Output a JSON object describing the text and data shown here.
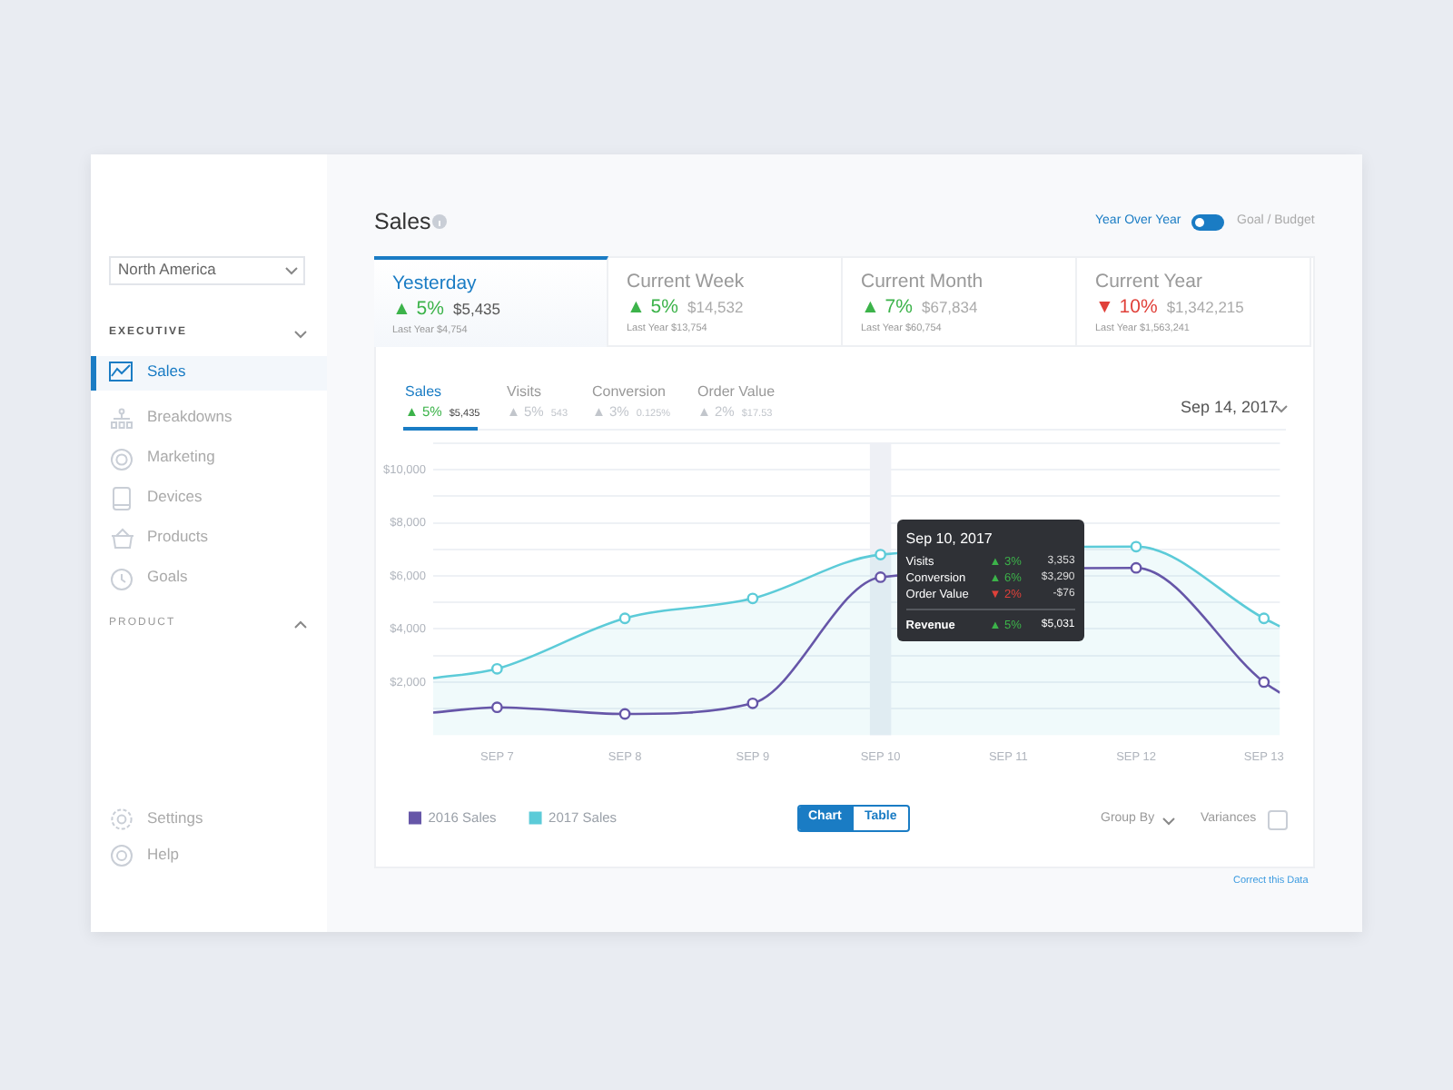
{
  "chart_data": {
    "type": "line",
    "title": "Sales",
    "x": [
      "2017-09-06T12:00",
      "2017-09-07",
      "2017-09-08",
      "2017-09-09",
      "2017-09-10",
      "2017-09-11",
      "2017-09-12",
      "2017-09-13",
      "2017-09-13T03:00"
    ],
    "series": [
      {
        "name": "2016 Sales",
        "color": "#6656a8",
        "values": [
          850,
          1050,
          800,
          1200,
          5950,
          null,
          6300,
          2000,
          1600
        ]
      },
      {
        "name": "2017 Sales",
        "type": "area",
        "color": "#5ccbd8",
        "values": [
          2150,
          2500,
          4400,
          5150,
          6800,
          null,
          7100,
          4400,
          4100
        ]
      }
    ],
    "xlim": [
      "2017-09-06T12:00",
      "2017-09-13T03:00"
    ],
    "xticks": [
      {
        "value": "2017-09-07",
        "label": "SEP 7"
      },
      {
        "value": "2017-09-08",
        "label": "SEP 8"
      },
      {
        "value": "2017-09-09",
        "label": "SEP 9"
      },
      {
        "value": "2017-09-10",
        "label": "SEP 10"
      },
      {
        "value": "2017-09-11",
        "label": "SEP 11"
      },
      {
        "value": "2017-09-12",
        "label": "SEP 12"
      },
      {
        "value": "2017-09-13",
        "label": "SEP 13"
      }
    ],
    "ylim": [
      0,
      11000
    ],
    "yticks": [
      {
        "value": 1000,
        "label": null
      },
      {
        "value": 2000,
        "label": "$2,000"
      },
      {
        "value": 3000,
        "label": null
      },
      {
        "value": 4000,
        "label": "$4,000"
      },
      {
        "value": 5000,
        "label": null
      },
      {
        "value": 6000,
        "label": "$6,000"
      },
      {
        "value": 7000,
        "label": null
      },
      {
        "value": 8000,
        "label": "$8,000"
      },
      {
        "value": 9000,
        "label": null
      },
      {
        "value": 10000,
        "label": "$10,000"
      },
      {
        "value": 11000,
        "label": null
      }
    ],
    "grid": "y",
    "legend": "bottom left",
    "marker": "circle",
    "bands": [
      {
        "axis": "x",
        "from": "2017-09-09T22:00",
        "to": "2017-09-10T02:00",
        "color": "#eef0f5"
      }
    ],
    "annotations": [
      "North America",
      "EXECUTIVE",
      "Sales",
      "Breakdowns",
      "Marketing",
      "Devices",
      "Products",
      "Goals",
      "PRODUCT",
      "Settings",
      "Help",
      "Year Over Year",
      "Goal / Budget",
      "Yesterday",
      "▲ 5%",
      "$5,435",
      "Last Year $4,754",
      "Current Week",
      "▲ 5%",
      "$14,532",
      "Last Year $13,754",
      "Current Month",
      "▲ 7%",
      "$67,834",
      "Last Year $60,754",
      "Current Year",
      "▼ 10%",
      "$1,342,215",
      "Last Year $1,563,241",
      "Sales",
      "▲ 5%",
      "$5,435",
      "Visits",
      "▲ 5%",
      "543",
      "Conversion",
      "▲ 3%",
      "0.125%",
      "Order Value",
      "▲ 2%",
      "$17.53",
      "Sep 14, 2017",
      {
        "text": "Sep 10, 2017",
        "x": "2017-09-10",
        "y": 5950
      },
      "Visits",
      "▲ 3%",
      "3,353",
      "Conversion",
      "▲ 6%",
      "$3,290",
      "Order Value",
      "▼ 2%",
      "-$76",
      "Revenue",
      "▲ 5%",
      "$5,031",
      "Chart",
      "Table",
      "Group By",
      "Variances",
      "Correct this Data"
    ]
  }
}
